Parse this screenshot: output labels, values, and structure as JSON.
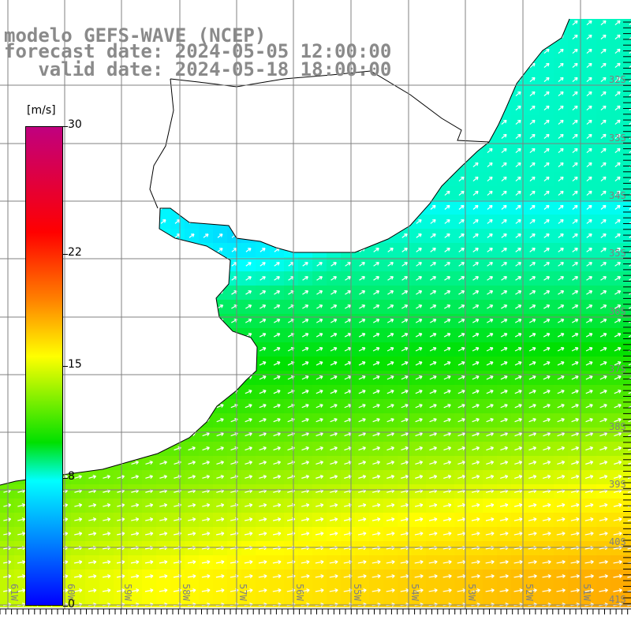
{
  "header": {
    "model": "modelo GEFS-WAVE (NCEP)",
    "forecast": "forecast date: 2024-05-05 12:00:00",
    "valid": "   valid date: 2024-05-18 18:00:00"
  },
  "colorbar": {
    "unit": "[m/s]",
    "ticks": [
      {
        "label": "30",
        "value": 30
      },
      {
        "label": "22",
        "value": 22
      },
      {
        "label": "15",
        "value": 15
      },
      {
        "label": "8",
        "value": 8
      },
      {
        "label": "0",
        "value": 0
      }
    ],
    "min": 0,
    "max": 30
  },
  "lon_labels": [
    "61W",
    "60W",
    "59W",
    "58W",
    "57W",
    "56W",
    "55W",
    "54W",
    "53W",
    "52W",
    "51W"
  ],
  "lat_labels": [
    "32S",
    "33S",
    "34S",
    "35S",
    "36S",
    "37S",
    "38S",
    "39S",
    "40S",
    "41S"
  ],
  "colors": {
    "grid": "#808080",
    "land": "#ffffff",
    "coast": "#000000",
    "arrow": "#ffffff",
    "label": "#808080"
  }
}
